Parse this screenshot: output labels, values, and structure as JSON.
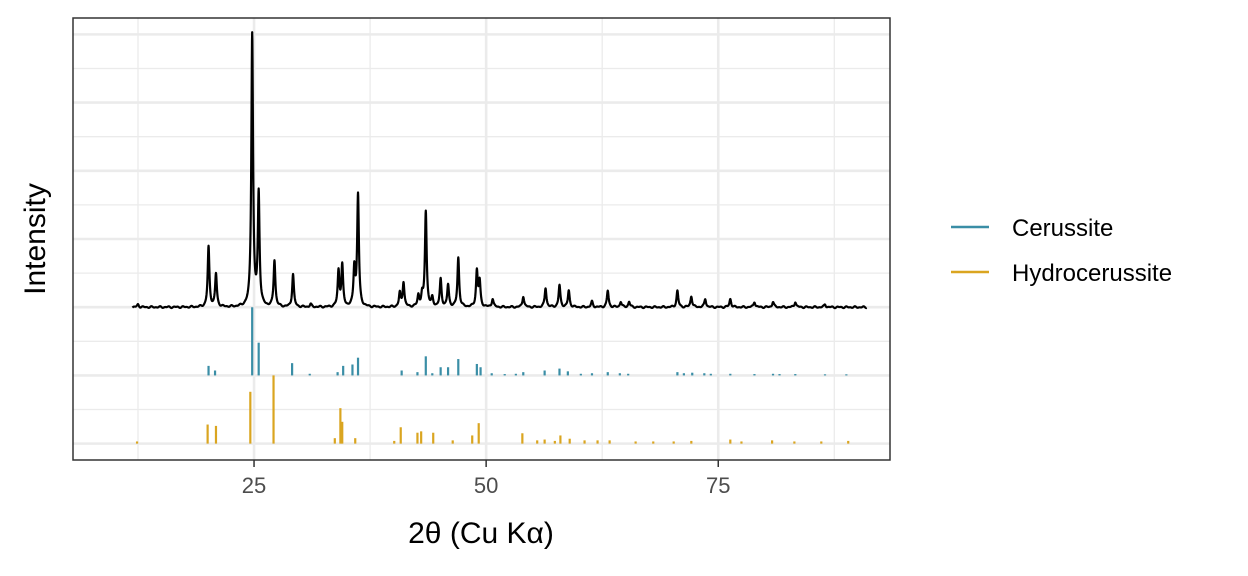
{
  "chart_data": {
    "type": "line",
    "title": "",
    "xlabel": "2θ (Cu Kα)",
    "ylabel": "Intensity",
    "xlim": [
      5.5,
      93.5
    ],
    "ylim": [
      -0.56,
      1.06
    ],
    "x_ticks": [
      25,
      50,
      75
    ],
    "x_tick_labels": [
      "25",
      "50",
      "75"
    ],
    "y_ticks_shown": false,
    "grid": true,
    "legend_position": "right",
    "colors": {
      "trace": "#000000",
      "Cerussite": "#3a8ea6",
      "Hydrocerussite": "#daa520"
    },
    "pattern": {
      "name": "Observed",
      "baseline": 0.0,
      "x_start": 11.9,
      "x_end": 91.0,
      "peaks": [
        {
          "x": 12.5,
          "y": 0.01
        },
        {
          "x": 20.1,
          "y": 0.22
        },
        {
          "x": 20.9,
          "y": 0.12
        },
        {
          "x": 24.8,
          "y": 1.0
        },
        {
          "x": 25.5,
          "y": 0.41
        },
        {
          "x": 27.2,
          "y": 0.17
        },
        {
          "x": 29.2,
          "y": 0.12
        },
        {
          "x": 31.1,
          "y": 0.01
        },
        {
          "x": 34.1,
          "y": 0.13
        },
        {
          "x": 34.5,
          "y": 0.15
        },
        {
          "x": 35.8,
          "y": 0.14
        },
        {
          "x": 36.2,
          "y": 0.41
        },
        {
          "x": 40.7,
          "y": 0.05
        },
        {
          "x": 41.1,
          "y": 0.09
        },
        {
          "x": 42.7,
          "y": 0.04
        },
        {
          "x": 43.1,
          "y": 0.04
        },
        {
          "x": 43.5,
          "y": 0.35
        },
        {
          "x": 44.2,
          "y": 0.03
        },
        {
          "x": 45.1,
          "y": 0.1
        },
        {
          "x": 45.9,
          "y": 0.08
        },
        {
          "x": 47.0,
          "y": 0.18
        },
        {
          "x": 49.0,
          "y": 0.13
        },
        {
          "x": 49.3,
          "y": 0.09
        },
        {
          "x": 50.7,
          "y": 0.03
        },
        {
          "x": 54.0,
          "y": 0.04
        },
        {
          "x": 56.4,
          "y": 0.07
        },
        {
          "x": 57.9,
          "y": 0.08
        },
        {
          "x": 58.9,
          "y": 0.06
        },
        {
          "x": 61.4,
          "y": 0.02
        },
        {
          "x": 63.1,
          "y": 0.06
        },
        {
          "x": 64.5,
          "y": 0.02
        },
        {
          "x": 65.4,
          "y": 0.02
        },
        {
          "x": 70.6,
          "y": 0.06
        },
        {
          "x": 72.1,
          "y": 0.04
        },
        {
          "x": 73.6,
          "y": 0.03
        },
        {
          "x": 76.3,
          "y": 0.03
        },
        {
          "x": 78.9,
          "y": 0.02
        },
        {
          "x": 80.9,
          "y": 0.02
        },
        {
          "x": 83.3,
          "y": 0.02
        },
        {
          "x": 86.5,
          "y": 0.01
        }
      ]
    },
    "series": [
      {
        "name": "Cerussite",
        "baseline": -0.25,
        "sticks": [
          {
            "x": 20.1,
            "h": 0.035
          },
          {
            "x": 20.8,
            "h": 0.018
          },
          {
            "x": 24.8,
            "h": 0.25
          },
          {
            "x": 25.5,
            "h": 0.12
          },
          {
            "x": 29.1,
            "h": 0.045
          },
          {
            "x": 31.0,
            "h": 0.006
          },
          {
            "x": 34.0,
            "h": 0.012
          },
          {
            "x": 34.6,
            "h": 0.035
          },
          {
            "x": 35.6,
            "h": 0.04
          },
          {
            "x": 36.2,
            "h": 0.065
          },
          {
            "x": 40.9,
            "h": 0.018
          },
          {
            "x": 42.6,
            "h": 0.012
          },
          {
            "x": 43.5,
            "h": 0.07
          },
          {
            "x": 44.2,
            "h": 0.008
          },
          {
            "x": 45.1,
            "h": 0.03
          },
          {
            "x": 45.9,
            "h": 0.03
          },
          {
            "x": 47.0,
            "h": 0.06
          },
          {
            "x": 49.0,
            "h": 0.042
          },
          {
            "x": 49.4,
            "h": 0.03
          },
          {
            "x": 50.6,
            "h": 0.008
          },
          {
            "x": 52.0,
            "h": 0.005
          },
          {
            "x": 53.2,
            "h": 0.006
          },
          {
            "x": 54.0,
            "h": 0.012
          },
          {
            "x": 56.3,
            "h": 0.018
          },
          {
            "x": 57.9,
            "h": 0.025
          },
          {
            "x": 58.8,
            "h": 0.015
          },
          {
            "x": 60.2,
            "h": 0.006
          },
          {
            "x": 61.4,
            "h": 0.008
          },
          {
            "x": 63.1,
            "h": 0.012
          },
          {
            "x": 64.4,
            "h": 0.008
          },
          {
            "x": 65.3,
            "h": 0.006
          },
          {
            "x": 70.6,
            "h": 0.012
          },
          {
            "x": 71.3,
            "h": 0.008
          },
          {
            "x": 72.2,
            "h": 0.01
          },
          {
            "x": 73.5,
            "h": 0.008
          },
          {
            "x": 74.2,
            "h": 0.006
          },
          {
            "x": 76.3,
            "h": 0.006
          },
          {
            "x": 78.9,
            "h": 0.005
          },
          {
            "x": 80.9,
            "h": 0.006
          },
          {
            "x": 81.6,
            "h": 0.005
          },
          {
            "x": 83.3,
            "h": 0.005
          },
          {
            "x": 86.5,
            "h": 0.004
          },
          {
            "x": 88.8,
            "h": 0.004
          }
        ]
      },
      {
        "name": "Hydrocerussite",
        "baseline": -0.5,
        "sticks": [
          {
            "x": 12.4,
            "h": 0.008
          },
          {
            "x": 20.0,
            "h": 0.07
          },
          {
            "x": 20.9,
            "h": 0.065
          },
          {
            "x": 24.6,
            "h": 0.19
          },
          {
            "x": 27.1,
            "h": 0.25
          },
          {
            "x": 33.7,
            "h": 0.02
          },
          {
            "x": 34.3,
            "h": 0.13
          },
          {
            "x": 34.5,
            "h": 0.08
          },
          {
            "x": 35.9,
            "h": 0.02
          },
          {
            "x": 40.1,
            "h": 0.01
          },
          {
            "x": 40.8,
            "h": 0.06
          },
          {
            "x": 42.6,
            "h": 0.04
          },
          {
            "x": 43.0,
            "h": 0.045
          },
          {
            "x": 44.3,
            "h": 0.04
          },
          {
            "x": 46.4,
            "h": 0.012
          },
          {
            "x": 48.5,
            "h": 0.03
          },
          {
            "x": 49.2,
            "h": 0.075
          },
          {
            "x": 53.9,
            "h": 0.038
          },
          {
            "x": 55.5,
            "h": 0.012
          },
          {
            "x": 56.3,
            "h": 0.015
          },
          {
            "x": 57.4,
            "h": 0.01
          },
          {
            "x": 58.0,
            "h": 0.03
          },
          {
            "x": 59.0,
            "h": 0.018
          },
          {
            "x": 60.6,
            "h": 0.012
          },
          {
            "x": 62.0,
            "h": 0.012
          },
          {
            "x": 63.3,
            "h": 0.012
          },
          {
            "x": 66.1,
            "h": 0.008
          },
          {
            "x": 68.0,
            "h": 0.008
          },
          {
            "x": 70.2,
            "h": 0.008
          },
          {
            "x": 72.1,
            "h": 0.01
          },
          {
            "x": 76.3,
            "h": 0.015
          },
          {
            "x": 77.5,
            "h": 0.008
          },
          {
            "x": 80.8,
            "h": 0.012
          },
          {
            "x": 83.2,
            "h": 0.008
          },
          {
            "x": 86.1,
            "h": 0.008
          },
          {
            "x": 89.0,
            "h": 0.01
          }
        ]
      }
    ]
  }
}
